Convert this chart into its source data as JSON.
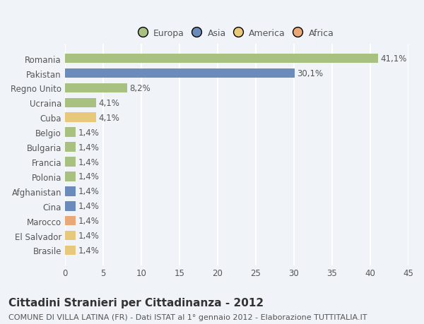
{
  "categories": [
    "Romania",
    "Pakistan",
    "Regno Unito",
    "Ucraina",
    "Cuba",
    "Belgio",
    "Bulgaria",
    "Francia",
    "Polonia",
    "Afghanistan",
    "Cina",
    "Marocco",
    "El Salvador",
    "Brasile"
  ],
  "values": [
    41.1,
    30.1,
    8.2,
    4.1,
    4.1,
    1.4,
    1.4,
    1.4,
    1.4,
    1.4,
    1.4,
    1.4,
    1.4,
    1.4
  ],
  "labels": [
    "41,1%",
    "30,1%",
    "8,2%",
    "4,1%",
    "4,1%",
    "1,4%",
    "1,4%",
    "1,4%",
    "1,4%",
    "1,4%",
    "1,4%",
    "1,4%",
    "1,4%",
    "1,4%"
  ],
  "colors": [
    "#a8c080",
    "#6b8cba",
    "#a8c080",
    "#a8c080",
    "#e8c87a",
    "#a8c080",
    "#a8c080",
    "#a8c080",
    "#a8c080",
    "#6b8cba",
    "#6b8cba",
    "#e8a878",
    "#e8c87a",
    "#e8c87a"
  ],
  "legend_labels": [
    "Europa",
    "Asia",
    "America",
    "Africa"
  ],
  "legend_colors": [
    "#a8c080",
    "#6b8cba",
    "#e8c87a",
    "#e8a878"
  ],
  "xlim": [
    0,
    45
  ],
  "xticks": [
    0,
    5,
    10,
    15,
    20,
    25,
    30,
    35,
    40,
    45
  ],
  "title": "Cittadini Stranieri per Cittadinanza - 2012",
  "subtitle": "COMUNE DI VILLA LATINA (FR) - Dati ISTAT al 1° gennaio 2012 - Elaborazione TUTTITALIA.IT",
  "bg_color": "#f0f4f8",
  "grid_color": "#ffffff",
  "label_fontsize": 8.5,
  "title_fontsize": 11,
  "subtitle_fontsize": 8
}
